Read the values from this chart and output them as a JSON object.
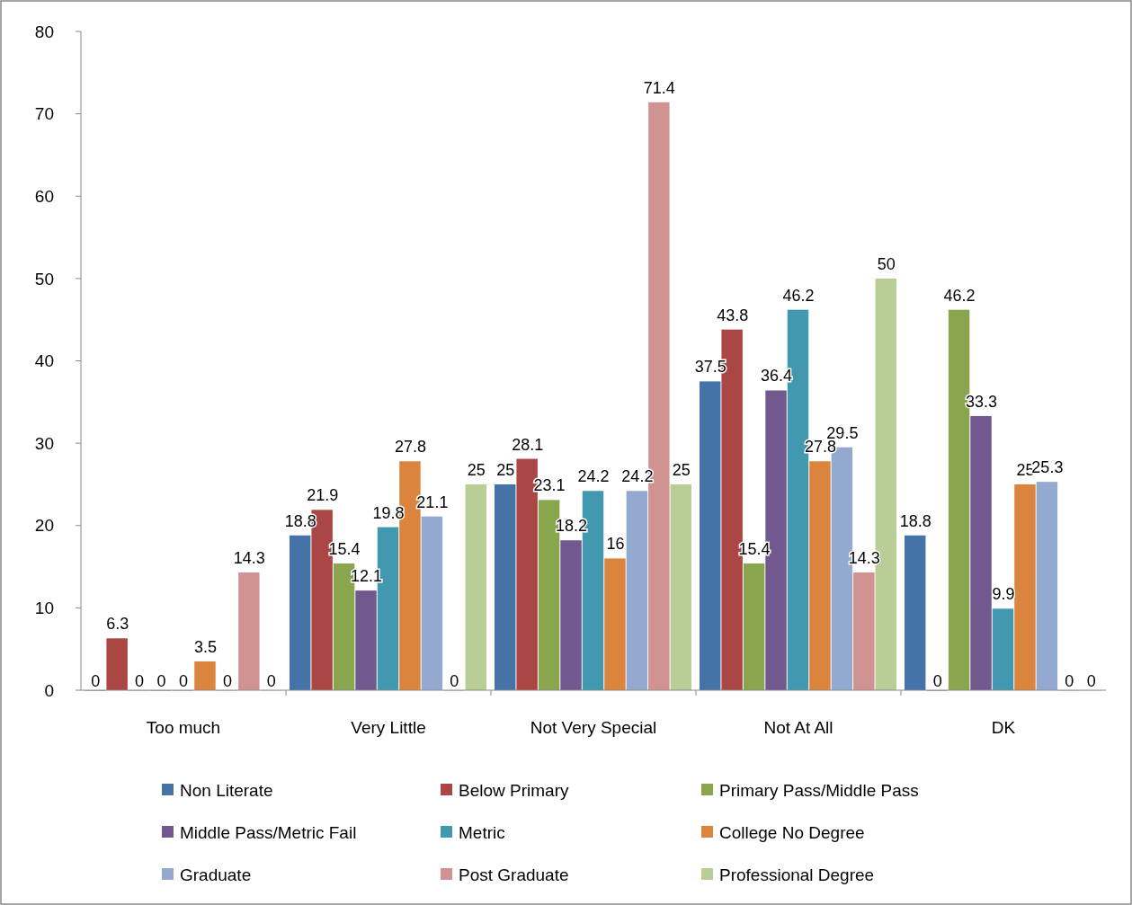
{
  "chart_data": {
    "type": "bar",
    "categories": [
      "Too much",
      "Very Little",
      "Not Very Special",
      "Not At All",
      "DK"
    ],
    "series": [
      {
        "name": "Non Literate",
        "color": "#4572a7",
        "values": [
          0,
          18.8,
          25,
          37.5,
          18.8
        ]
      },
      {
        "name": "Below Primary",
        "color": "#aa4643",
        "values": [
          6.3,
          21.9,
          28.1,
          43.8,
          0
        ]
      },
      {
        "name": "Primary Pass/Middle Pass",
        "color": "#89a54e",
        "values": [
          0,
          15.4,
          23.1,
          15.4,
          46.2
        ]
      },
      {
        "name": "Middle Pass/Metric Fail",
        "color": "#71588f",
        "values": [
          0,
          12.1,
          18.2,
          36.4,
          33.3
        ]
      },
      {
        "name": "Metric",
        "color": "#4198af",
        "values": [
          0,
          19.8,
          24.2,
          46.2,
          9.9
        ]
      },
      {
        "name": "College No Degree",
        "color": "#db843d",
        "values": [
          3.5,
          27.8,
          16,
          27.8,
          25
        ]
      },
      {
        "name": "Graduate",
        "color": "#93a9cf",
        "values": [
          0,
          21.1,
          24.2,
          29.5,
          25.3
        ]
      },
      {
        "name": "Post Graduate",
        "color": "#d19392",
        "values": [
          14.3,
          0,
          71.4,
          14.3,
          0
        ]
      },
      {
        "name": "Professional Degree",
        "color": "#b9cd96",
        "values": [
          0,
          25,
          25,
          50,
          0
        ]
      }
    ],
    "ylim": [
      0,
      80
    ],
    "yticks": [
      0,
      10,
      20,
      30,
      40,
      50,
      60,
      70,
      80
    ],
    "grid": false,
    "legend": "bottom",
    "data_labels": true
  }
}
